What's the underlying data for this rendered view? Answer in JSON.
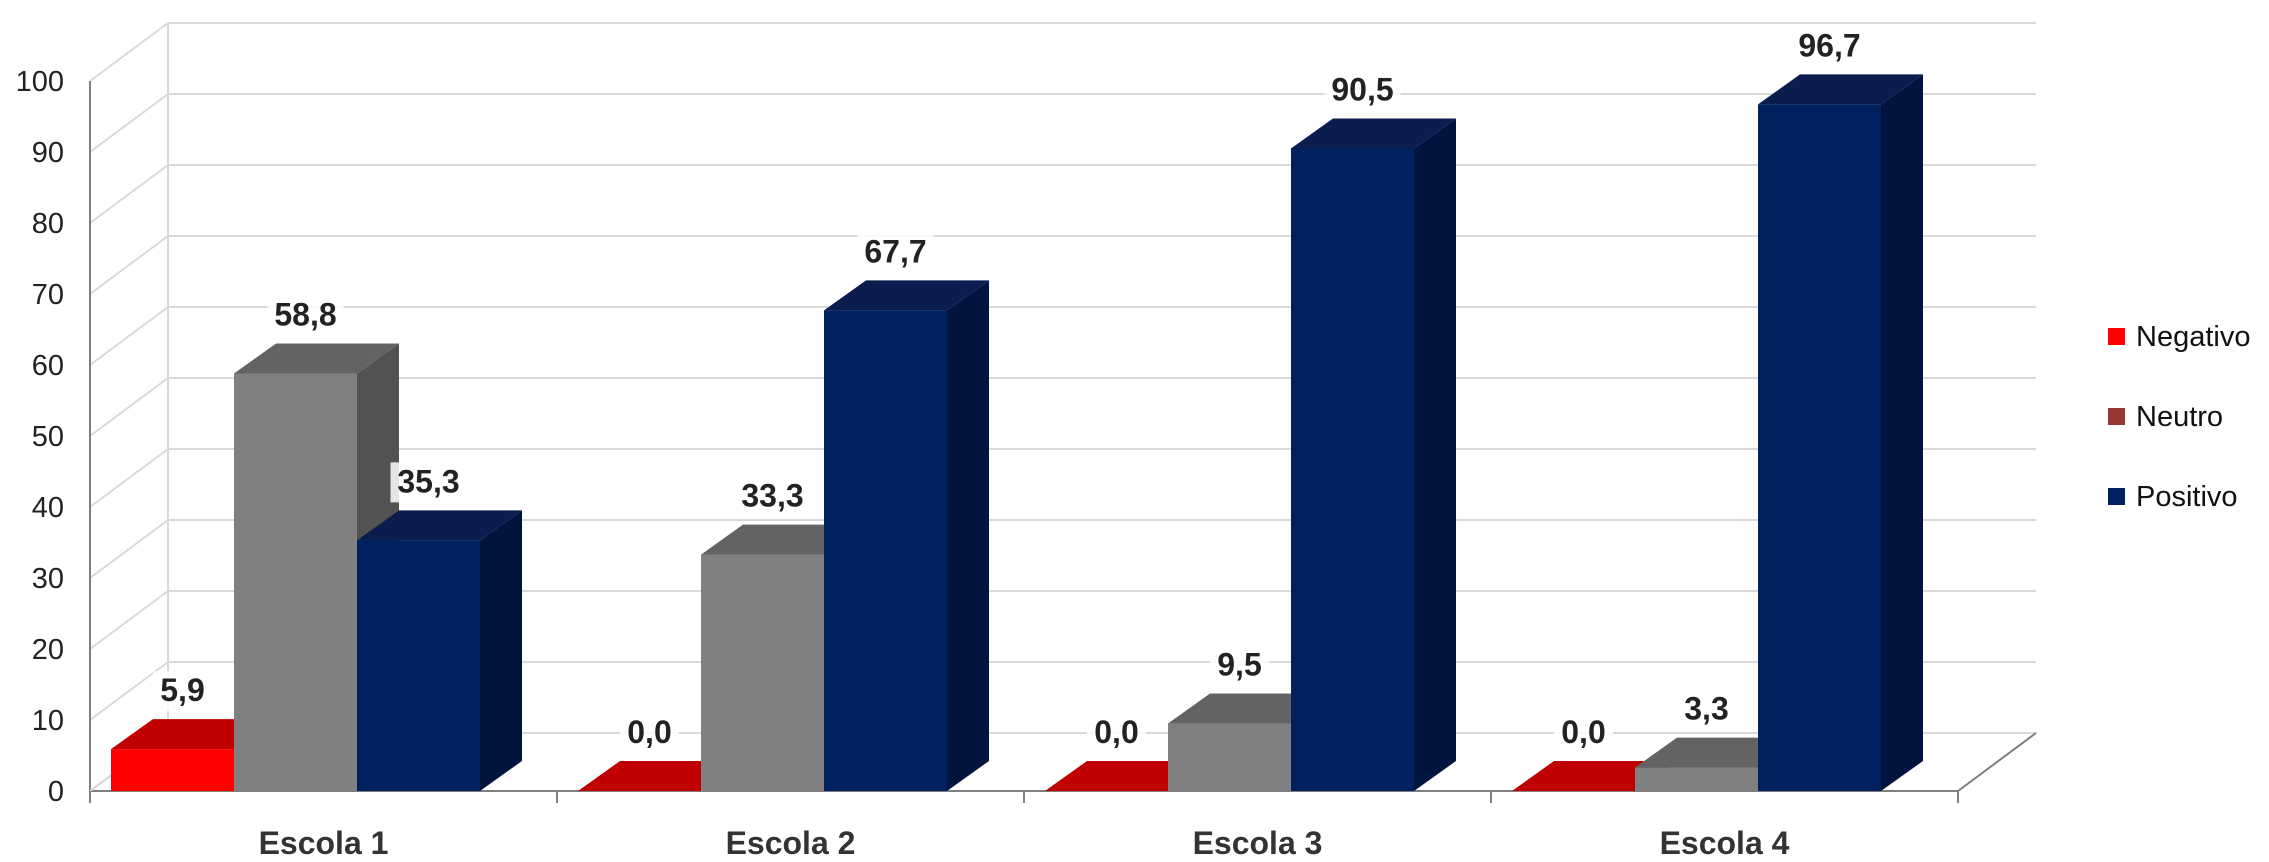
{
  "chart_data": {
    "type": "bar",
    "style": "3d-clustered-column",
    "categories": [
      "Escola 1",
      "Escola 2",
      "Escola 3",
      "Escola 4"
    ],
    "series": [
      {
        "name": "Negativo",
        "values": [
          5.9,
          0.0,
          0.0,
          0.0
        ],
        "data_labels": [
          "5,9",
          "0,0",
          "0,0",
          "0,0"
        ]
      },
      {
        "name": "Neutro",
        "values": [
          58.8,
          33.3,
          9.5,
          3.3
        ],
        "data_labels": [
          "58,8",
          "33,3",
          "9,5",
          "3,3"
        ]
      },
      {
        "name": "Positivo",
        "values": [
          35.3,
          67.7,
          90.5,
          96.7
        ],
        "data_labels": [
          "35,3",
          "67,7",
          "90,5",
          "96,7"
        ]
      }
    ],
    "ylim": [
      0,
      100
    ],
    "yticks": [
      "0",
      "10",
      "20",
      "30",
      "40",
      "50",
      "60",
      "70",
      "80",
      "90",
      "100"
    ],
    "grid": true,
    "legend_position": "right"
  },
  "colors": {
    "negativo_front": "#ff0000",
    "negativo_top": "#c00000",
    "neutro_front": "#808080",
    "neutro_top": "#636363",
    "neutro_side": "#525252",
    "positivo_front": "#002060",
    "positivo_top": "#0b1d4f",
    "positivo_side": "#00143e",
    "legend_neutro": "#953735",
    "grid": "#d9d9d9",
    "axis": "#7f7f7f"
  }
}
